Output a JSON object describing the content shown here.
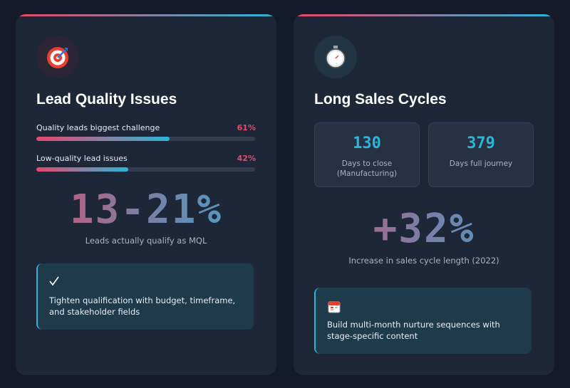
{
  "cards": [
    {
      "title": "Lead Quality Issues",
      "progress": [
        {
          "label": "Quality leads biggest challenge",
          "percent": {
            "value": 61,
            "label": "61%"
          }
        },
        {
          "label": "Low-quality lead issues",
          "percent": {
            "value": 42,
            "label": "42%"
          }
        }
      ],
      "stat": "13-21%",
      "stat_caption": "Leads actually qualify as MQL",
      "callout": "Tighten qualification with budget, timeframe, and stakeholder fields"
    },
    {
      "title": "Long Sales Cycles",
      "metrics": [
        {
          "value": "130",
          "label": "Days to close (Manufacturing)"
        },
        {
          "value": "379",
          "label": "Days full journey"
        }
      ],
      "stat": "+32%",
      "stat_caption": "Increase in sales cycle length (2022)",
      "callout": "Build multi-month nurture sequences with stage-specific content"
    }
  ]
}
